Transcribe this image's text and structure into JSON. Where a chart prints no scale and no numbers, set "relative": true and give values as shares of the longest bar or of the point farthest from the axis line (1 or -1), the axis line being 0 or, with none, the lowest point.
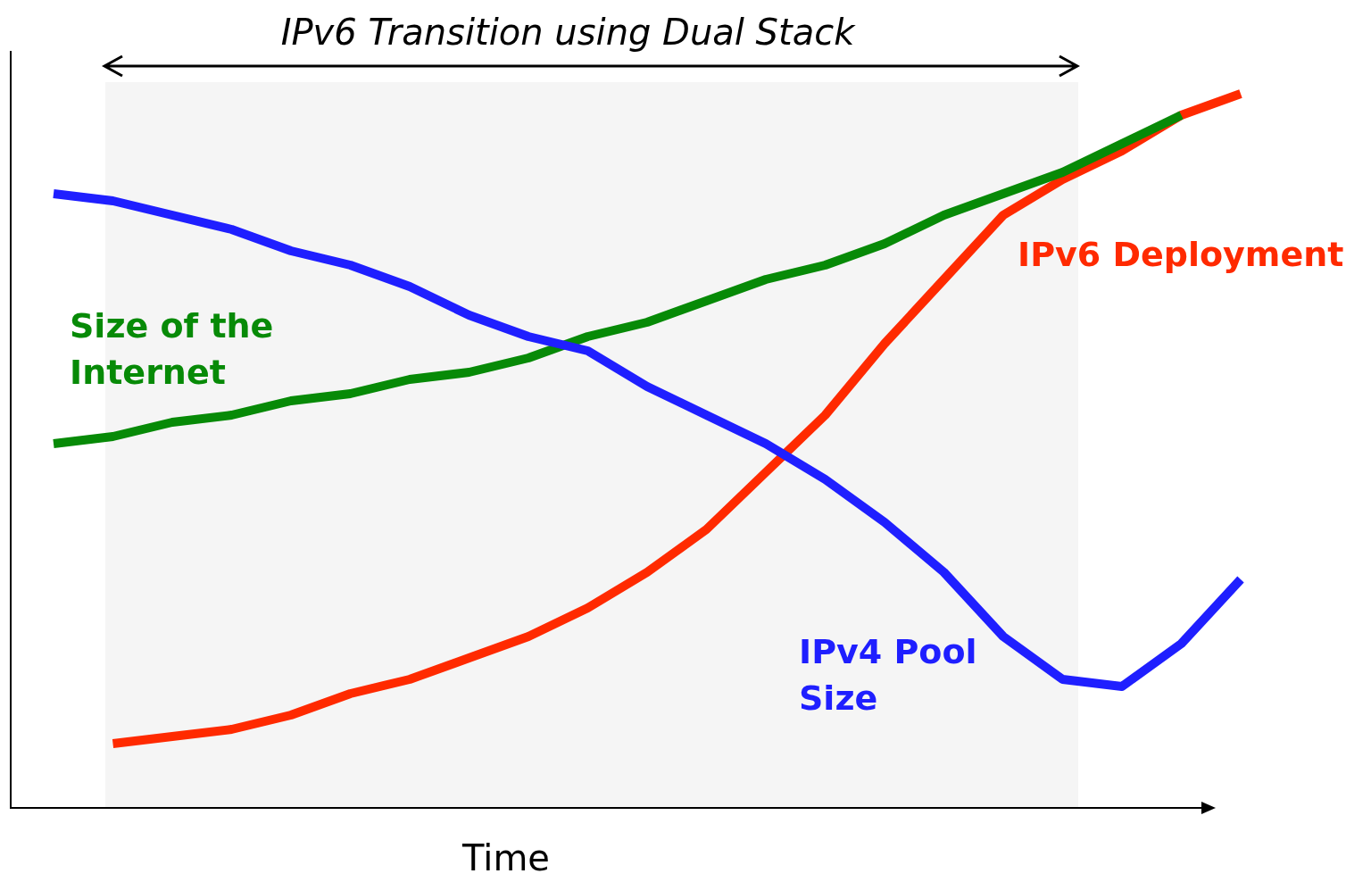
{
  "chart_data": {
    "type": "line",
    "xlabel": "Time",
    "relative": true,
    "legend": false,
    "tick_labels": false,
    "marker": "none",
    "line_style": "solid",
    "annotations": [
      "IPv6 Transition using Dual Stack"
    ],
    "categories": [
      null,
      null,
      null,
      null,
      null,
      null,
      null,
      null,
      null,
      null,
      null,
      null,
      null,
      null,
      null,
      null,
      null,
      null,
      null,
      null,
      null
    ],
    "series": [
      {
        "name": "IPv4 Pool Size",
        "color": "#1f1fff",
        "values": [
          0.86,
          0.85,
          0.83,
          0.81,
          0.78,
          0.76,
          0.73,
          0.69,
          0.66,
          0.64,
          0.59,
          0.55,
          0.51,
          0.46,
          0.4,
          0.33,
          0.24,
          0.18,
          0.17,
          0.23,
          0.32
        ]
      },
      {
        "name": "Size of the Internet",
        "color": "#078a07",
        "values": [
          0.51,
          0.52,
          0.54,
          0.55,
          0.57,
          0.58,
          0.6,
          0.61,
          0.63,
          0.66,
          0.68,
          0.71,
          0.74,
          0.76,
          0.79,
          0.83,
          0.86,
          0.89,
          0.93,
          0.97,
          null
        ]
      },
      {
        "name": "IPv6 Deployment",
        "color": "#ff2a00",
        "values": [
          null,
          0.09,
          0.1,
          0.11,
          0.13,
          0.16,
          0.18,
          0.21,
          0.24,
          0.28,
          0.33,
          0.39,
          0.47,
          0.55,
          0.65,
          0.74,
          0.83,
          0.88,
          0.92,
          0.97,
          1.0
        ]
      }
    ]
  }
}
